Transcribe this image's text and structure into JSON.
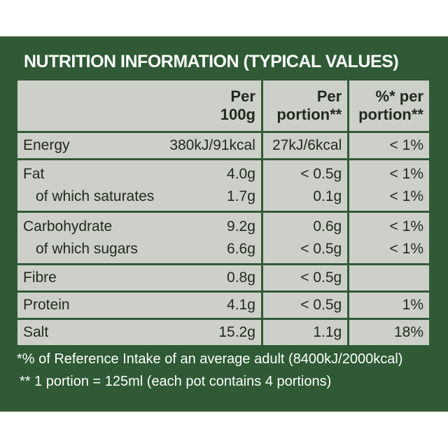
{
  "header": {
    "title": "NUTRITION INFORMATION (TYPICAL VALUES)"
  },
  "table": {
    "columns": [
      [
        "Per",
        "100g"
      ],
      [
        "Per",
        "portion**"
      ],
      [
        "%* per",
        "portion**"
      ]
    ],
    "groups": [
      [
        [
          "Energy",
          "380kJ/91kcal",
          "27kJ/6kcal",
          "< 1%"
        ]
      ],
      [
        [
          "Fat",
          "4.0g",
          "< 0.5g",
          "< 1%"
        ],
        [
          "of which saturates",
          "1.7g",
          "0.1g",
          "< 1%"
        ]
      ],
      [
        [
          "Carbohydrate",
          "9.2g",
          "0.6g",
          "< 1%"
        ],
        [
          "of which sugars",
          "6.6g",
          "< 0.5g",
          "< 1%"
        ]
      ],
      [
        [
          "Fibre",
          "0.8g",
          "< 0.5g"
        ]
      ],
      [
        [
          "Protein",
          "4.1g",
          "< 0.5g",
          "1%"
        ]
      ],
      [
        [
          "Salt",
          "15.2g",
          "1.1g",
          "18%"
        ]
      ]
    ]
  },
  "footnotes": [
    "*% of Reference Intake of an average adult (8400kJ/2000kcal)",
    "** 1 portion = 125ml (each pot contains 4 portions)"
  ]
}
